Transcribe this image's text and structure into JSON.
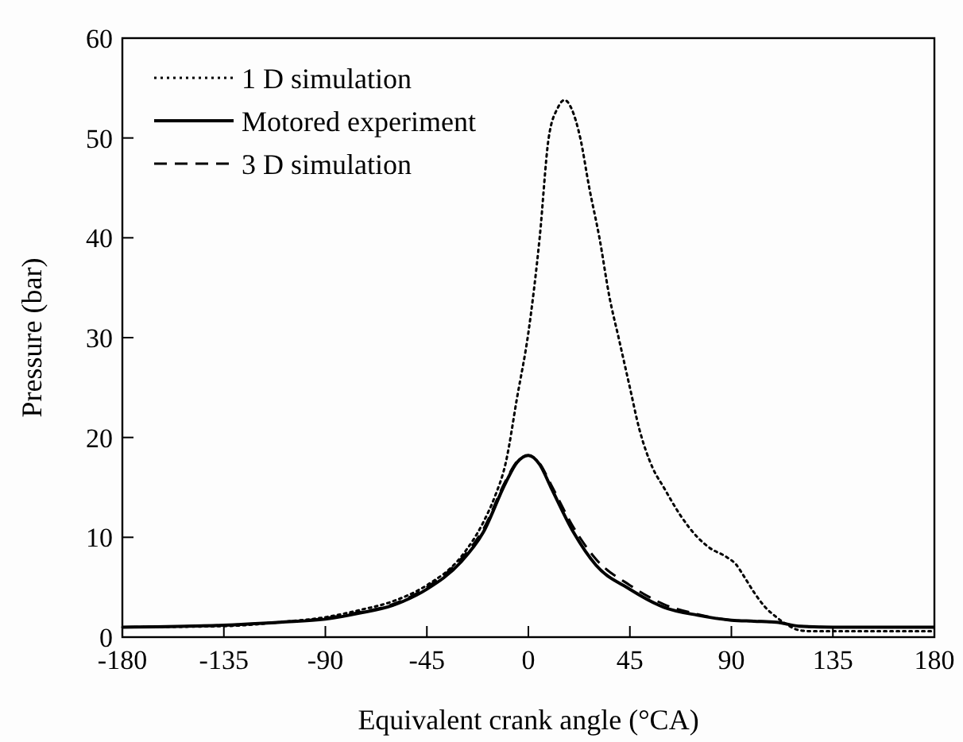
{
  "chart_data": {
    "type": "line",
    "xlabel": "Equivalent crank angle (°CA)",
    "ylabel": "Pressure (bar)",
    "xlim": [
      -180,
      180
    ],
    "xticks": [
      -180,
      -135,
      -90,
      -45,
      0,
      45,
      90,
      135,
      180
    ],
    "ylim": [
      0,
      60
    ],
    "yticks": [
      0,
      10,
      20,
      30,
      40,
      50,
      60
    ],
    "grid": false,
    "legend": "top left",
    "series": [
      {
        "name": "1 D simulation",
        "color": "#000000",
        "line_style": "dotted",
        "x": [
          -180,
          -135,
          -110,
          -90,
          -75,
          -60,
          -45,
          -30,
          -20,
          -15,
          -10,
          -5,
          0,
          5,
          9,
          13,
          16,
          19,
          23,
          27,
          31.5,
          36,
          40,
          45,
          49,
          55,
          60,
          68,
          75,
          80,
          88,
          92,
          95,
          100,
          105,
          110,
          115,
          120,
          125,
          135,
          150,
          180
        ],
        "values": [
          1.0,
          1.1,
          1.5,
          2.0,
          2.7,
          3.6,
          5.2,
          8,
          11.5,
          14,
          17.5,
          24,
          30.5,
          40,
          50,
          53,
          53.8,
          53,
          50,
          45,
          40,
          34,
          30,
          25,
          21,
          17,
          15,
          12,
          10,
          9,
          8,
          7.3,
          6.3,
          4.5,
          3,
          2,
          1.2,
          0.7,
          0.6,
          0.6,
          0.6,
          0.6
        ]
      },
      {
        "name": "Motored experiment",
        "color": "#000000",
        "line_style": "solid",
        "x": [
          -180,
          -135,
          -110,
          -90,
          -75,
          -60,
          -45,
          -30,
          -20,
          -10,
          -5,
          0,
          5,
          10,
          20,
          30,
          45,
          60,
          75,
          90,
          100,
          110,
          120,
          135,
          150,
          180
        ],
        "values": [
          1.0,
          1.2,
          1.5,
          1.8,
          2.4,
          3.2,
          4.8,
          7.5,
          10.5,
          15.5,
          17.5,
          18.2,
          17.3,
          15,
          10.5,
          7.2,
          4.8,
          3.0,
          2.2,
          1.7,
          1.6,
          1.5,
          1.1,
          1.0,
          1.0,
          1.0
        ]
      },
      {
        "name": "3 D simulation",
        "color": "#000000",
        "line_style": "dashed",
        "x": [
          -180,
          -135,
          -110,
          -90,
          -75,
          -60,
          -45,
          -30,
          -20,
          -10,
          -5,
          0,
          5,
          10,
          20,
          30,
          45,
          60,
          75,
          90,
          100,
          110,
          120,
          135,
          150,
          180
        ],
        "values": [
          1.0,
          1.2,
          1.5,
          1.9,
          2.5,
          3.3,
          5.0,
          7.8,
          10.8,
          15.7,
          17.6,
          18.2,
          17.4,
          15.3,
          11,
          7.8,
          5.2,
          3.3,
          2.3,
          1.7,
          1.6,
          1.5,
          1.1,
          1.0,
          1.0,
          1.0
        ]
      }
    ]
  }
}
